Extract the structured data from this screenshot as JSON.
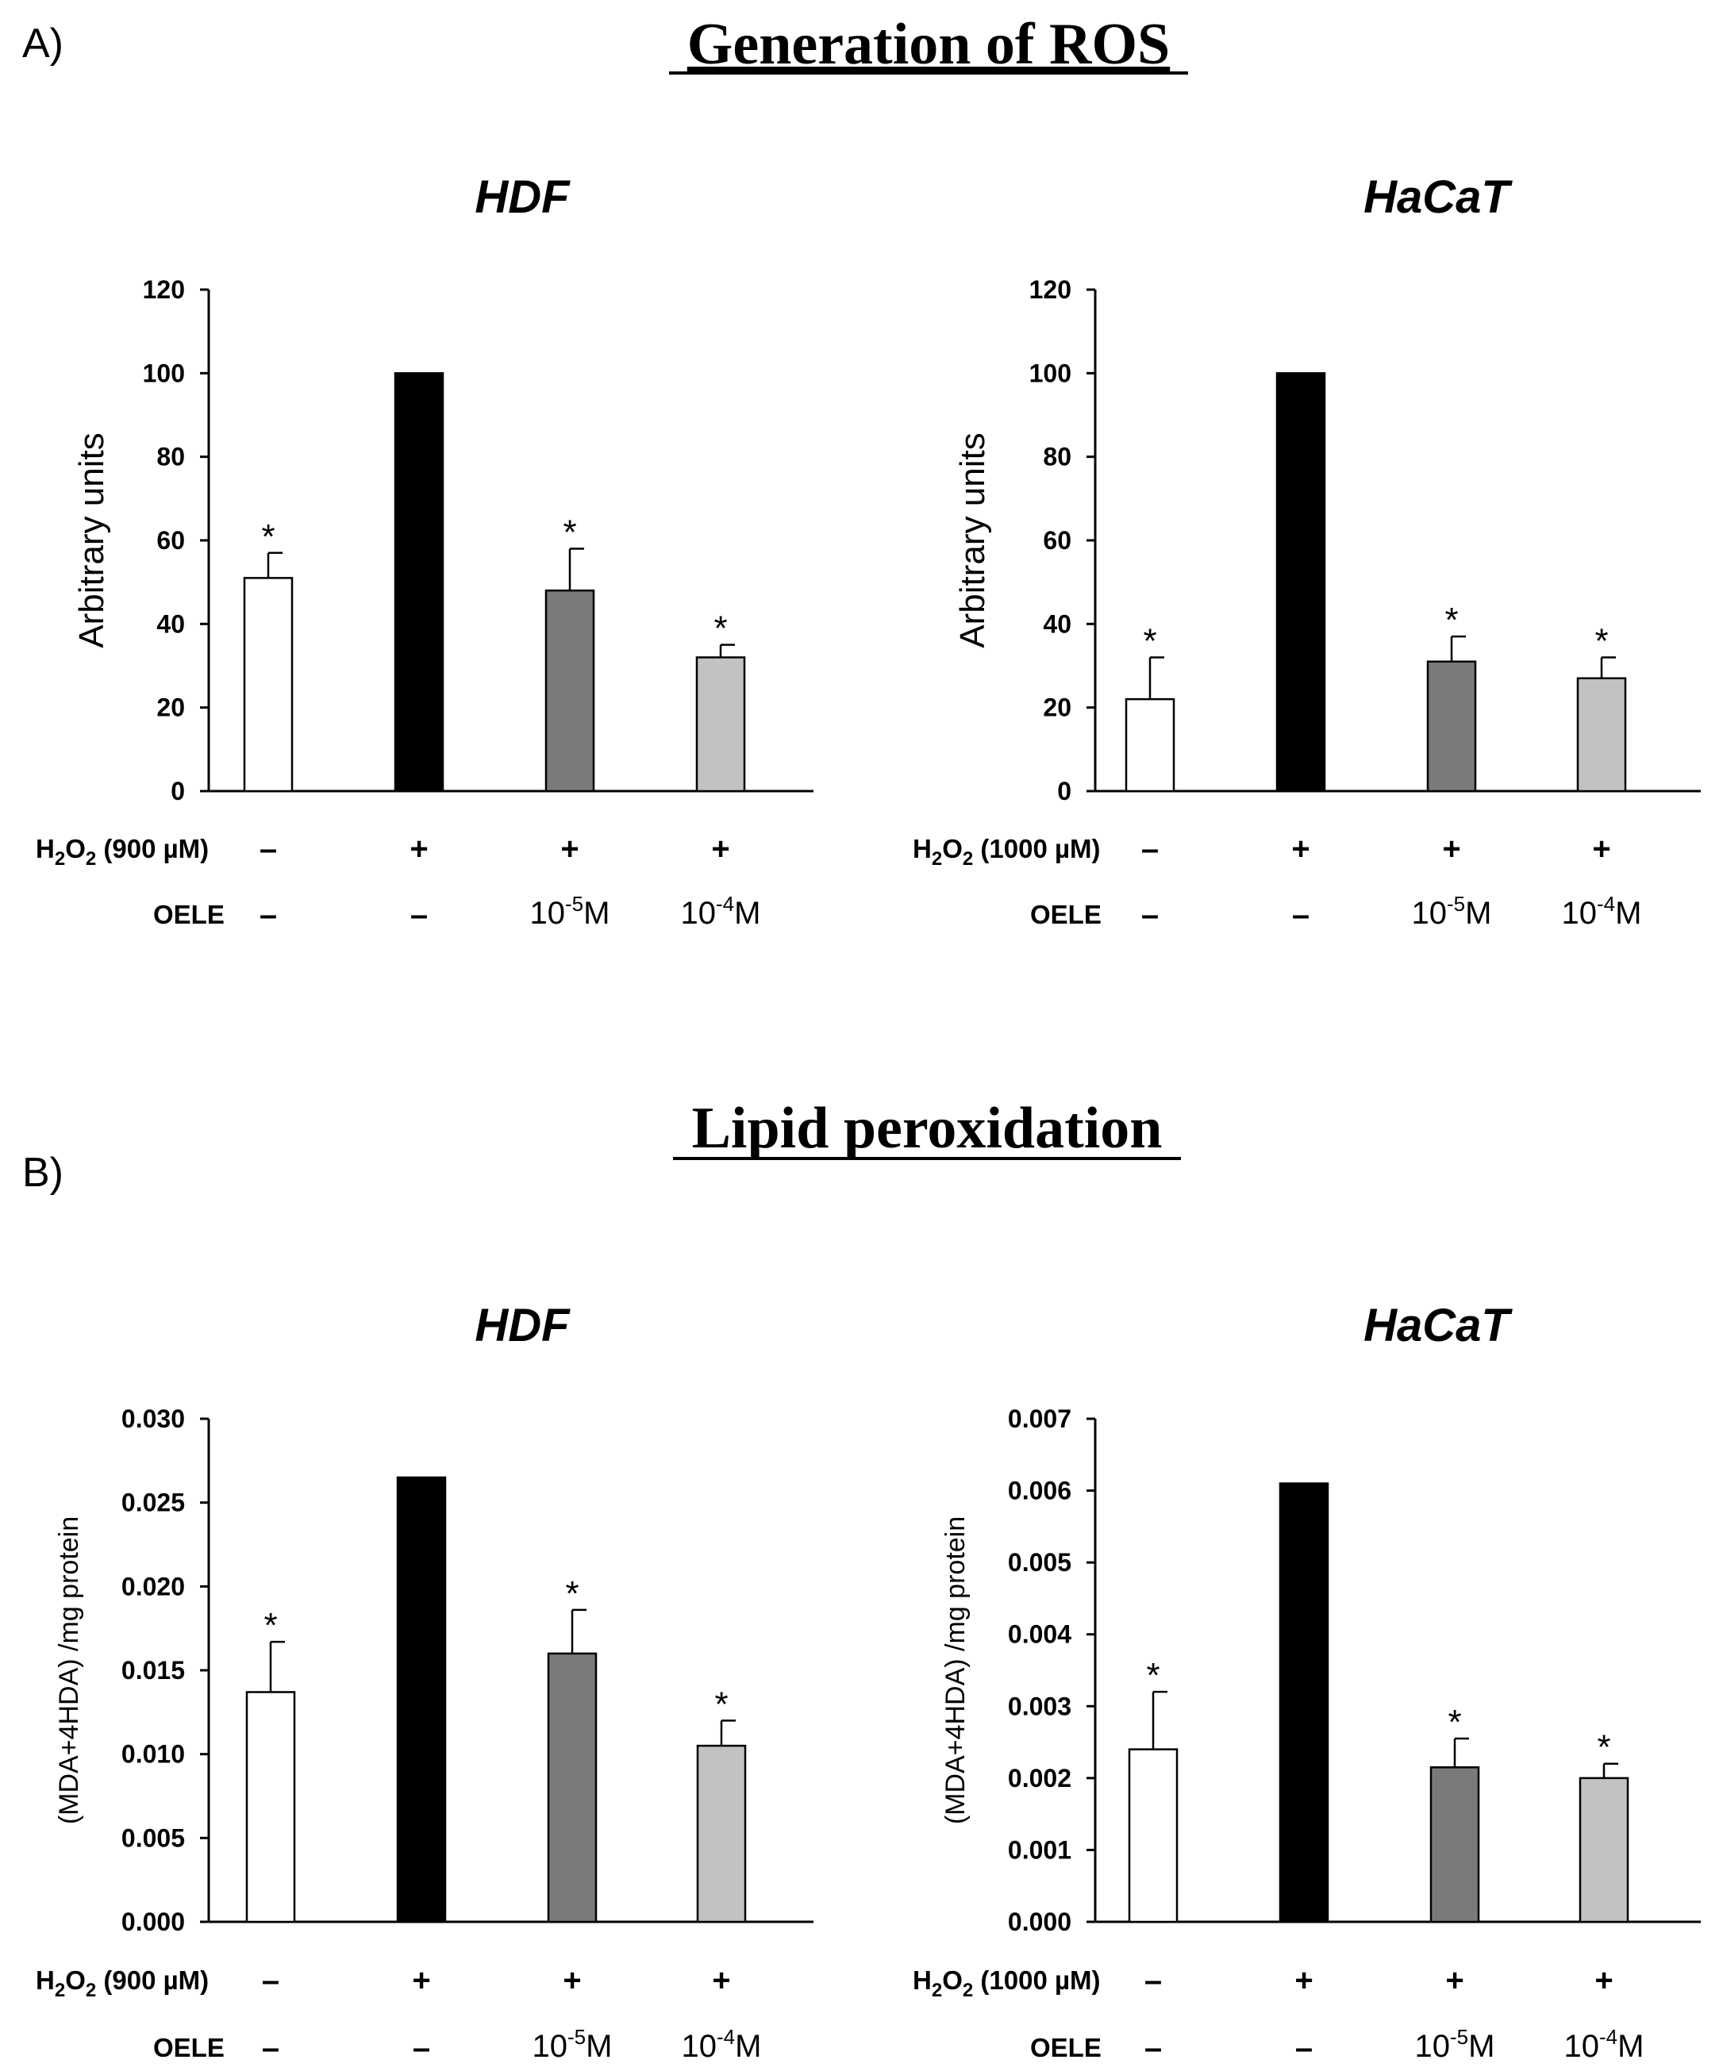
{
  "sections": [
    {
      "letter": "A)",
      "title": "Generation of ROS"
    },
    {
      "letter": "B)",
      "title": "Lipid peroxidation"
    }
  ],
  "row_labels": {
    "oele": "OELE"
  },
  "chart_data": [
    {
      "type": "bar",
      "section": "A",
      "title": "HDF",
      "ylabel": "Arbitrary units",
      "ylim": [
        0,
        120
      ],
      "yticks": [
        "0",
        "20",
        "40",
        "60",
        "80",
        "100",
        "120"
      ],
      "values": [
        51,
        100,
        48,
        32
      ],
      "errors": [
        6,
        0,
        10,
        3
      ],
      "significance": [
        "*",
        "",
        "*",
        "*"
      ],
      "colors": [
        "#ffffff",
        "#000000",
        "#7a7a7a",
        "#c2c2c2"
      ],
      "h2o2_conc": "900 µM",
      "h2o2": [
        "–",
        "+",
        "+",
        "+"
      ],
      "oele": [
        "–",
        "–",
        "10-5M",
        "10-4M"
      ]
    },
    {
      "type": "bar",
      "section": "A",
      "title": "HaCaT",
      "ylabel": "Arbitrary units",
      "ylim": [
        0,
        120
      ],
      "yticks": [
        "0",
        "20",
        "40",
        "60",
        "80",
        "100",
        "120"
      ],
      "values": [
        22,
        100,
        31,
        27
      ],
      "errors": [
        10,
        0,
        6,
        5
      ],
      "significance": [
        "*",
        "",
        "*",
        "*"
      ],
      "colors": [
        "#ffffff",
        "#000000",
        "#7a7a7a",
        "#c2c2c2"
      ],
      "h2o2_conc": "1000 µM",
      "h2o2": [
        "–",
        "+",
        "+",
        "+"
      ],
      "oele": [
        "–",
        "–",
        "10-5M",
        "10-4M"
      ]
    },
    {
      "type": "bar",
      "section": "B",
      "title": "HDF",
      "ylabel": "(MDA+4HDA) /mg protein",
      "ylim": [
        0,
        0.03
      ],
      "yticks": [
        "0.000",
        "0.005",
        "0.010",
        "0.015",
        "0.020",
        "0.025",
        "0.030"
      ],
      "values": [
        0.0137,
        0.0265,
        0.016,
        0.0105
      ],
      "errors": [
        0.003,
        0,
        0.0026,
        0.0015
      ],
      "significance": [
        "*",
        "",
        "*",
        "*"
      ],
      "colors": [
        "#ffffff",
        "#000000",
        "#7a7a7a",
        "#c2c2c2"
      ],
      "h2o2_conc": "900 µM",
      "h2o2": [
        "–",
        "+",
        "+",
        "+"
      ],
      "oele": [
        "–",
        "–",
        "10-5M",
        "10-4M"
      ]
    },
    {
      "type": "bar",
      "section": "B",
      "title": "HaCaT",
      "ylabel": "(MDA+4HDA) /mg protein",
      "ylim": [
        0,
        0.007
      ],
      "yticks": [
        "0.000",
        "0.001",
        "0.002",
        "0.003",
        "0.004",
        "0.005",
        "0.006",
        "0.007"
      ],
      "values": [
        0.0024,
        0.0061,
        0.00215,
        0.002
      ],
      "errors": [
        0.0008,
        0,
        0.0004,
        0.0002
      ],
      "significance": [
        "*",
        "",
        "*",
        "*"
      ],
      "colors": [
        "#ffffff",
        "#000000",
        "#7a7a7a",
        "#c2c2c2"
      ],
      "h2o2_conc": "1000 µM",
      "h2o2": [
        "–",
        "+",
        "+",
        "+"
      ],
      "oele": [
        "–",
        "–",
        "10-5M",
        "10-4M"
      ]
    }
  ]
}
